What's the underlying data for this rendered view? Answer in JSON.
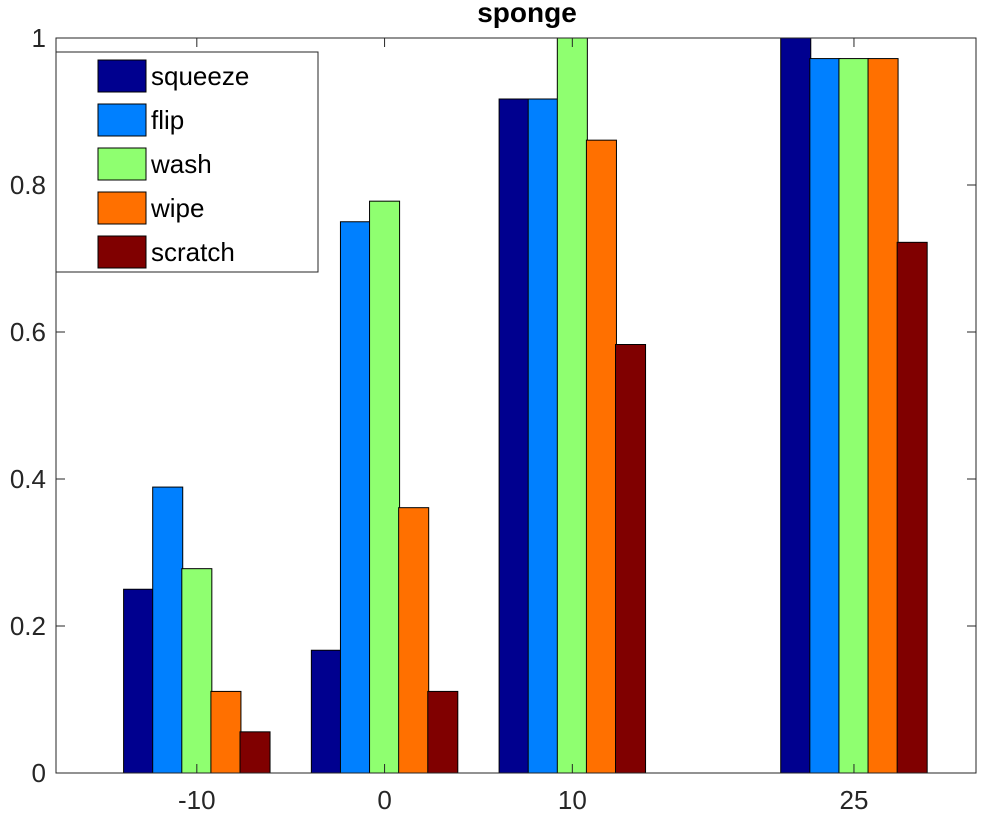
{
  "chart_data": {
    "type": "bar",
    "title": "sponge",
    "xlabel": "",
    "ylabel": "",
    "ylim": [
      0,
      1
    ],
    "x": [
      -10,
      0,
      10,
      25
    ],
    "xlim": [
      -17.5,
      31.5
    ],
    "bar_width": 1.6,
    "bar_offsets": [
      -3.1,
      -1.55,
      0,
      1.55,
      3.1
    ],
    "categories": [
      "-10",
      "0",
      "10",
      "25"
    ],
    "yticks": [
      0,
      0.2,
      0.4,
      0.6,
      0.8,
      1
    ],
    "ytick_labels": [
      "0",
      "0.2",
      "0.4",
      "0.6",
      "0.8",
      "1"
    ],
    "legend_position": "top-left",
    "series": [
      {
        "name": "squeeze",
        "color": "#00008f",
        "values": [
          0.25,
          0.167,
          0.917,
          1.0
        ]
      },
      {
        "name": "flip",
        "color": "#0080ff",
        "values": [
          0.389,
          0.75,
          0.917,
          0.972
        ]
      },
      {
        "name": "wash",
        "color": "#8fff70",
        "values": [
          0.278,
          0.778,
          1.0,
          0.972
        ]
      },
      {
        "name": "wipe",
        "color": "#ff7000",
        "values": [
          0.111,
          0.361,
          0.861,
          0.972
        ]
      },
      {
        "name": "scratch",
        "color": "#800000",
        "values": [
          0.056,
          0.111,
          0.583,
          0.722
        ]
      }
    ]
  }
}
